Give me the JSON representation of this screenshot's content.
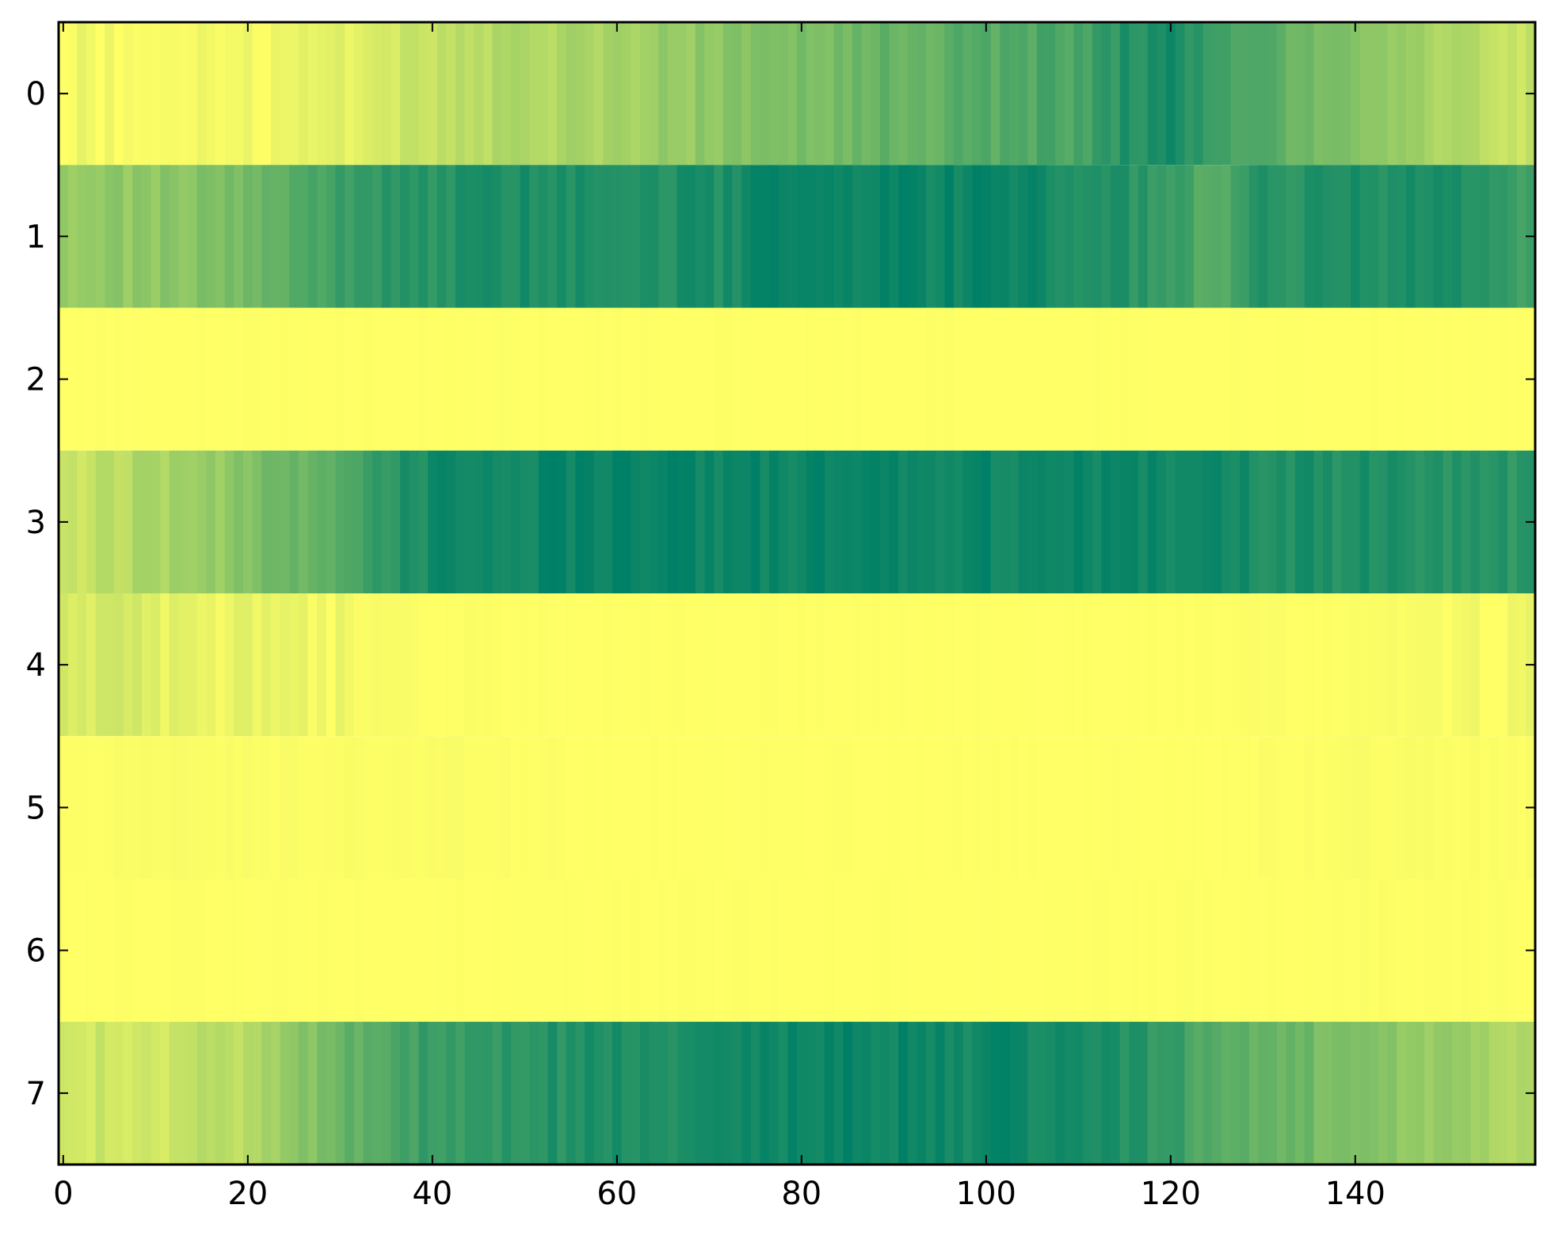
{
  "chart_data": {
    "type": "heatmap",
    "title": "",
    "xlabel": "",
    "ylabel": "",
    "colormap": "summer",
    "colors": {
      "low": "#008066",
      "high": "#ffff66",
      "axis": "#000000",
      "background": "#ffffff"
    },
    "value_range": [
      0,
      1
    ],
    "xlim": [
      -0.5,
      159.5
    ],
    "ylim": [
      7.5,
      -0.5
    ],
    "x_ticks": [
      0,
      20,
      40,
      60,
      80,
      100,
      120,
      140
    ],
    "x_tick_labels": [
      "0",
      "20",
      "40",
      "60",
      "80",
      "100",
      "120",
      "140"
    ],
    "y_ticks": [
      0,
      1,
      2,
      3,
      4,
      5,
      6,
      7
    ],
    "y_tick_labels": [
      "0",
      "1",
      "2",
      "3",
      "4",
      "5",
      "6",
      "7"
    ],
    "grid": false,
    "n_columns": 160,
    "rows": [
      {
        "row": 0,
        "x": [
          0,
          10,
          20,
          30,
          40,
          50,
          60,
          70,
          80,
          90,
          100,
          110,
          115,
          120,
          125,
          130,
          140,
          150,
          159
        ],
        "value": [
          0.95,
          0.98,
          0.96,
          0.88,
          0.78,
          0.7,
          0.66,
          0.55,
          0.48,
          0.4,
          0.35,
          0.28,
          0.15,
          0.1,
          0.22,
          0.35,
          0.55,
          0.68,
          0.78
        ]
      },
      {
        "row": 1,
        "x": [
          0,
          10,
          20,
          25,
          30,
          40,
          50,
          60,
          70,
          80,
          90,
          100,
          110,
          120,
          125,
          130,
          140,
          150,
          159
        ],
        "value": [
          0.62,
          0.55,
          0.45,
          0.32,
          0.25,
          0.15,
          0.1,
          0.14,
          0.12,
          0.03,
          0.06,
          0.05,
          0.1,
          0.2,
          0.38,
          0.15,
          0.12,
          0.1,
          0.25
        ]
      },
      {
        "row": 2,
        "x": [
          0,
          40,
          80,
          120,
          159
        ],
        "value": [
          1.0,
          1.0,
          1.0,
          1.0,
          1.0
        ]
      },
      {
        "row": 3,
        "x": [
          0,
          10,
          20,
          30,
          35,
          40,
          50,
          60,
          70,
          80,
          90,
          100,
          110,
          120,
          130,
          140,
          150,
          159
        ],
        "value": [
          0.8,
          0.68,
          0.52,
          0.33,
          0.18,
          0.08,
          0.06,
          0.03,
          0.05,
          0.04,
          0.06,
          0.05,
          0.04,
          0.08,
          0.1,
          0.12,
          0.15,
          0.18
        ]
      },
      {
        "row": 4,
        "x": [
          0,
          5,
          10,
          15,
          20,
          25,
          30,
          35,
          40,
          60,
          80,
          100,
          120,
          140,
          150,
          159
        ],
        "value": [
          0.82,
          0.84,
          0.88,
          0.9,
          0.93,
          0.95,
          0.96,
          0.98,
          0.99,
          1.0,
          1.0,
          1.0,
          1.0,
          0.99,
          0.97,
          0.95
        ]
      },
      {
        "row": 5,
        "x": [
          0,
          10,
          20,
          30,
          40,
          50,
          60,
          100,
          130,
          140,
          150,
          159
        ],
        "value": [
          0.99,
          0.98,
          0.985,
          0.99,
          0.98,
          0.995,
          1.0,
          1.0,
          0.995,
          0.985,
          0.99,
          0.985
        ]
      },
      {
        "row": 6,
        "x": [
          0,
          40,
          80,
          120,
          130,
          140,
          150,
          159
        ],
        "value": [
          1.0,
          1.0,
          1.0,
          1.0,
          0.995,
          0.99,
          0.995,
          1.0
        ]
      },
      {
        "row": 7,
        "x": [
          0,
          10,
          20,
          25,
          30,
          35,
          40,
          50,
          60,
          70,
          80,
          85,
          90,
          100,
          110,
          120,
          125,
          130,
          140,
          150,
          159
        ],
        "value": [
          0.82,
          0.8,
          0.72,
          0.58,
          0.42,
          0.3,
          0.22,
          0.15,
          0.12,
          0.1,
          0.05,
          0.03,
          0.05,
          0.06,
          0.07,
          0.2,
          0.35,
          0.4,
          0.5,
          0.62,
          0.72
        ]
      }
    ]
  }
}
